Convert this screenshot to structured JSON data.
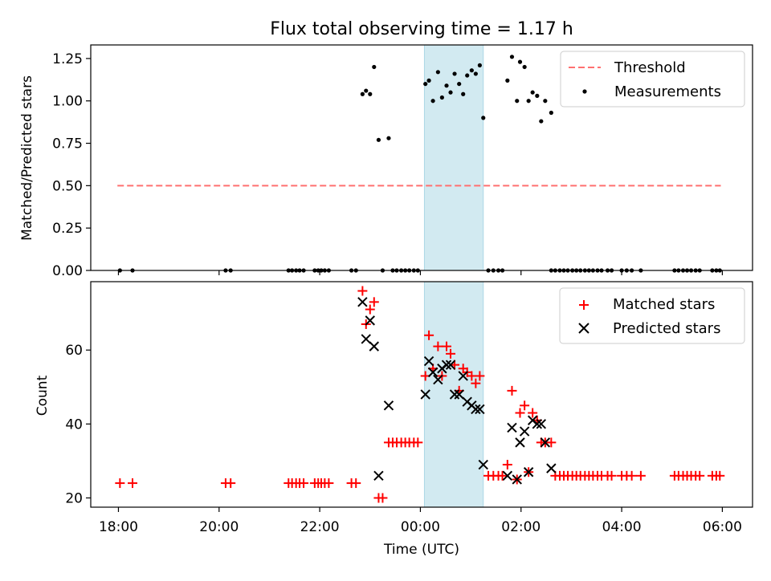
{
  "chart_data": [
    {
      "type": "scatter",
      "title": "Flux total observing time = 1.17 h",
      "ylabel": "Matched/Predicted stars",
      "xlabel": "",
      "ylim": [
        0,
        1.33
      ],
      "yticks": [
        0.0,
        0.25,
        0.5,
        0.75,
        1.0,
        1.25
      ],
      "ytick_labels": [
        "0.00",
        "0.25",
        "0.50",
        "0.75",
        "1.00",
        "1.25"
      ],
      "legend": "top-right",
      "shaded_interval": [
        0.08,
        1.25
      ],
      "shade_color": "#add8e6",
      "threshold": {
        "name": "Threshold",
        "value": 0.5,
        "x": [
          -6.02,
          5.97
        ],
        "color": "#ff7070"
      },
      "series": [
        {
          "name": "Measurements",
          "marker": "dot",
          "color": "#000000",
          "points": [
            [
              -5.97,
              0
            ],
            [
              -5.72,
              0
            ],
            [
              -3.87,
              0
            ],
            [
              -3.77,
              0
            ],
            [
              -2.62,
              0
            ],
            [
              -2.55,
              0
            ],
            [
              -2.47,
              0
            ],
            [
              -2.4,
              0
            ],
            [
              -2.32,
              0
            ],
            [
              -2.1,
              0
            ],
            [
              -2.03,
              0
            ],
            [
              -1.97,
              0
            ],
            [
              -1.9,
              0
            ],
            [
              -1.82,
              0
            ],
            [
              -1.37,
              0
            ],
            [
              -1.28,
              0
            ],
            [
              -1.15,
              1.04
            ],
            [
              -1.08,
              1.06
            ],
            [
              -1.0,
              1.04
            ],
            [
              -0.92,
              1.2
            ],
            [
              -0.83,
              0.77
            ],
            [
              -0.75,
              0
            ],
            [
              -0.63,
              0.78
            ],
            [
              -0.55,
              0
            ],
            [
              -0.47,
              0
            ],
            [
              -0.38,
              0
            ],
            [
              -0.3,
              0
            ],
            [
              -0.22,
              0
            ],
            [
              -0.13,
              0
            ],
            [
              -0.05,
              0
            ],
            [
              0.1,
              1.1
            ],
            [
              0.17,
              1.12
            ],
            [
              0.25,
              1.0
            ],
            [
              0.35,
              1.17
            ],
            [
              0.43,
              1.02
            ],
            [
              0.52,
              1.09
            ],
            [
              0.6,
              1.05
            ],
            [
              0.68,
              1.16
            ],
            [
              0.77,
              1.1
            ],
            [
              0.85,
              1.04
            ],
            [
              0.93,
              1.15
            ],
            [
              1.02,
              1.18
            ],
            [
              1.1,
              1.16
            ],
            [
              1.18,
              1.21
            ],
            [
              1.25,
              0.9
            ],
            [
              1.35,
              0
            ],
            [
              1.45,
              0
            ],
            [
              1.55,
              0
            ],
            [
              1.63,
              0
            ],
            [
              1.73,
              1.12
            ],
            [
              1.82,
              1.26
            ],
            [
              1.92,
              1.0
            ],
            [
              1.98,
              1.23
            ],
            [
              2.07,
              1.2
            ],
            [
              2.15,
              1.0
            ],
            [
              2.23,
              1.05
            ],
            [
              2.32,
              1.03
            ],
            [
              2.4,
              0.88
            ],
            [
              2.48,
              1.0
            ],
            [
              2.6,
              0.93
            ],
            [
              2.6,
              0
            ],
            [
              2.68,
              0
            ],
            [
              2.77,
              0
            ],
            [
              2.85,
              0
            ],
            [
              2.93,
              0
            ],
            [
              3.02,
              0
            ],
            [
              3.1,
              0
            ],
            [
              3.18,
              0
            ],
            [
              3.27,
              0
            ],
            [
              3.35,
              0
            ],
            [
              3.43,
              0
            ],
            [
              3.52,
              0
            ],
            [
              3.6,
              0
            ],
            [
              3.72,
              0
            ],
            [
              3.8,
              0
            ],
            [
              4.0,
              0
            ],
            [
              4.1,
              0
            ],
            [
              4.2,
              0
            ],
            [
              4.38,
              0
            ],
            [
              5.05,
              0
            ],
            [
              5.13,
              0
            ],
            [
              5.22,
              0
            ],
            [
              5.3,
              0
            ],
            [
              5.38,
              0
            ],
            [
              5.47,
              0
            ],
            [
              5.55,
              0
            ],
            [
              5.8,
              0
            ],
            [
              5.88,
              0
            ],
            [
              5.95,
              0
            ]
          ]
        }
      ]
    },
    {
      "type": "scatter",
      "title": "",
      "xlabel": "Time (UTC)",
      "ylabel": "Count",
      "xlim": [
        -6.55,
        6.6
      ],
      "ylim": [
        17.5,
        78.5
      ],
      "yticks": [
        20,
        40,
        60
      ],
      "ytick_labels": [
        "20",
        "40",
        "60"
      ],
      "xticks": [
        -6,
        -4,
        -2,
        0,
        2,
        4,
        6
      ],
      "xtick_labels": [
        "18:00",
        "20:00",
        "22:00",
        "00:00",
        "02:00",
        "04:00",
        "06:00"
      ],
      "legend": "top-right",
      "shaded_interval": [
        0.08,
        1.25
      ],
      "series": [
        {
          "name": "Matched stars",
          "marker": "plus",
          "color": "#ff0000",
          "points": [
            [
              -5.97,
              24
            ],
            [
              -5.72,
              24
            ],
            [
              -3.87,
              24
            ],
            [
              -3.77,
              24
            ],
            [
              -2.62,
              24
            ],
            [
              -2.55,
              24
            ],
            [
              -2.47,
              24
            ],
            [
              -2.4,
              24
            ],
            [
              -2.32,
              24
            ],
            [
              -2.1,
              24
            ],
            [
              -2.03,
              24
            ],
            [
              -1.97,
              24
            ],
            [
              -1.9,
              24
            ],
            [
              -1.82,
              24
            ],
            [
              -1.37,
              24
            ],
            [
              -1.28,
              24
            ],
            [
              -1.15,
              76
            ],
            [
              -1.08,
              67
            ],
            [
              -1.0,
              71
            ],
            [
              -0.92,
              73
            ],
            [
              -0.83,
              20
            ],
            [
              -0.75,
              20
            ],
            [
              -0.63,
              35
            ],
            [
              -0.55,
              35
            ],
            [
              -0.47,
              35
            ],
            [
              -0.38,
              35
            ],
            [
              -0.3,
              35
            ],
            [
              -0.22,
              35
            ],
            [
              -0.13,
              35
            ],
            [
              -0.05,
              35
            ],
            [
              0.1,
              53
            ],
            [
              0.17,
              64
            ],
            [
              0.25,
              55
            ],
            [
              0.35,
              61
            ],
            [
              0.43,
              53
            ],
            [
              0.52,
              61
            ],
            [
              0.6,
              59
            ],
            [
              0.68,
              56
            ],
            [
              0.77,
              49
            ],
            [
              0.85,
              55
            ],
            [
              0.93,
              54
            ],
            [
              1.02,
              53
            ],
            [
              1.1,
              51
            ],
            [
              1.18,
              53
            ],
            [
              1.35,
              26
            ],
            [
              1.45,
              26
            ],
            [
              1.55,
              26
            ],
            [
              1.63,
              26
            ],
            [
              1.73,
              29
            ],
            [
              1.82,
              49
            ],
            [
              1.92,
              25
            ],
            [
              1.98,
              43
            ],
            [
              2.07,
              45
            ],
            [
              2.15,
              27
            ],
            [
              2.23,
              43
            ],
            [
              2.32,
              41
            ],
            [
              2.4,
              35
            ],
            [
              2.48,
              35
            ],
            [
              2.6,
              35
            ],
            [
              2.68,
              26
            ],
            [
              2.77,
              26
            ],
            [
              2.85,
              26
            ],
            [
              2.93,
              26
            ],
            [
              3.02,
              26
            ],
            [
              3.1,
              26
            ],
            [
              3.18,
              26
            ],
            [
              3.27,
              26
            ],
            [
              3.35,
              26
            ],
            [
              3.43,
              26
            ],
            [
              3.52,
              26
            ],
            [
              3.6,
              26
            ],
            [
              3.72,
              26
            ],
            [
              3.8,
              26
            ],
            [
              4.0,
              26
            ],
            [
              4.1,
              26
            ],
            [
              4.2,
              26
            ],
            [
              4.38,
              26
            ],
            [
              5.05,
              26
            ],
            [
              5.13,
              26
            ],
            [
              5.22,
              26
            ],
            [
              5.3,
              26
            ],
            [
              5.38,
              26
            ],
            [
              5.47,
              26
            ],
            [
              5.55,
              26
            ],
            [
              5.8,
              26
            ],
            [
              5.88,
              26
            ],
            [
              5.95,
              26
            ]
          ]
        },
        {
          "name": "Predicted stars",
          "marker": "x",
          "color": "#000000",
          "points": [
            [
              -1.15,
              73
            ],
            [
              -1.08,
              63
            ],
            [
              -1.0,
              68
            ],
            [
              -0.92,
              61
            ],
            [
              -0.83,
              26
            ],
            [
              -0.63,
              45
            ],
            [
              0.1,
              48
            ],
            [
              0.17,
              57
            ],
            [
              0.25,
              54
            ],
            [
              0.35,
              52
            ],
            [
              0.43,
              55
            ],
            [
              0.52,
              56
            ],
            [
              0.6,
              56
            ],
            [
              0.68,
              48
            ],
            [
              0.77,
              48
            ],
            [
              0.85,
              53
            ],
            [
              0.93,
              46
            ],
            [
              1.02,
              45
            ],
            [
              1.1,
              44
            ],
            [
              1.18,
              44
            ],
            [
              1.25,
              29
            ],
            [
              1.73,
              26
            ],
            [
              1.82,
              39
            ],
            [
              1.92,
              25
            ],
            [
              1.98,
              35
            ],
            [
              2.07,
              38
            ],
            [
              2.15,
              27
            ],
            [
              2.23,
              41
            ],
            [
              2.32,
              40
            ],
            [
              2.4,
              40
            ],
            [
              2.48,
              35
            ],
            [
              2.6,
              28
            ]
          ]
        }
      ]
    }
  ]
}
